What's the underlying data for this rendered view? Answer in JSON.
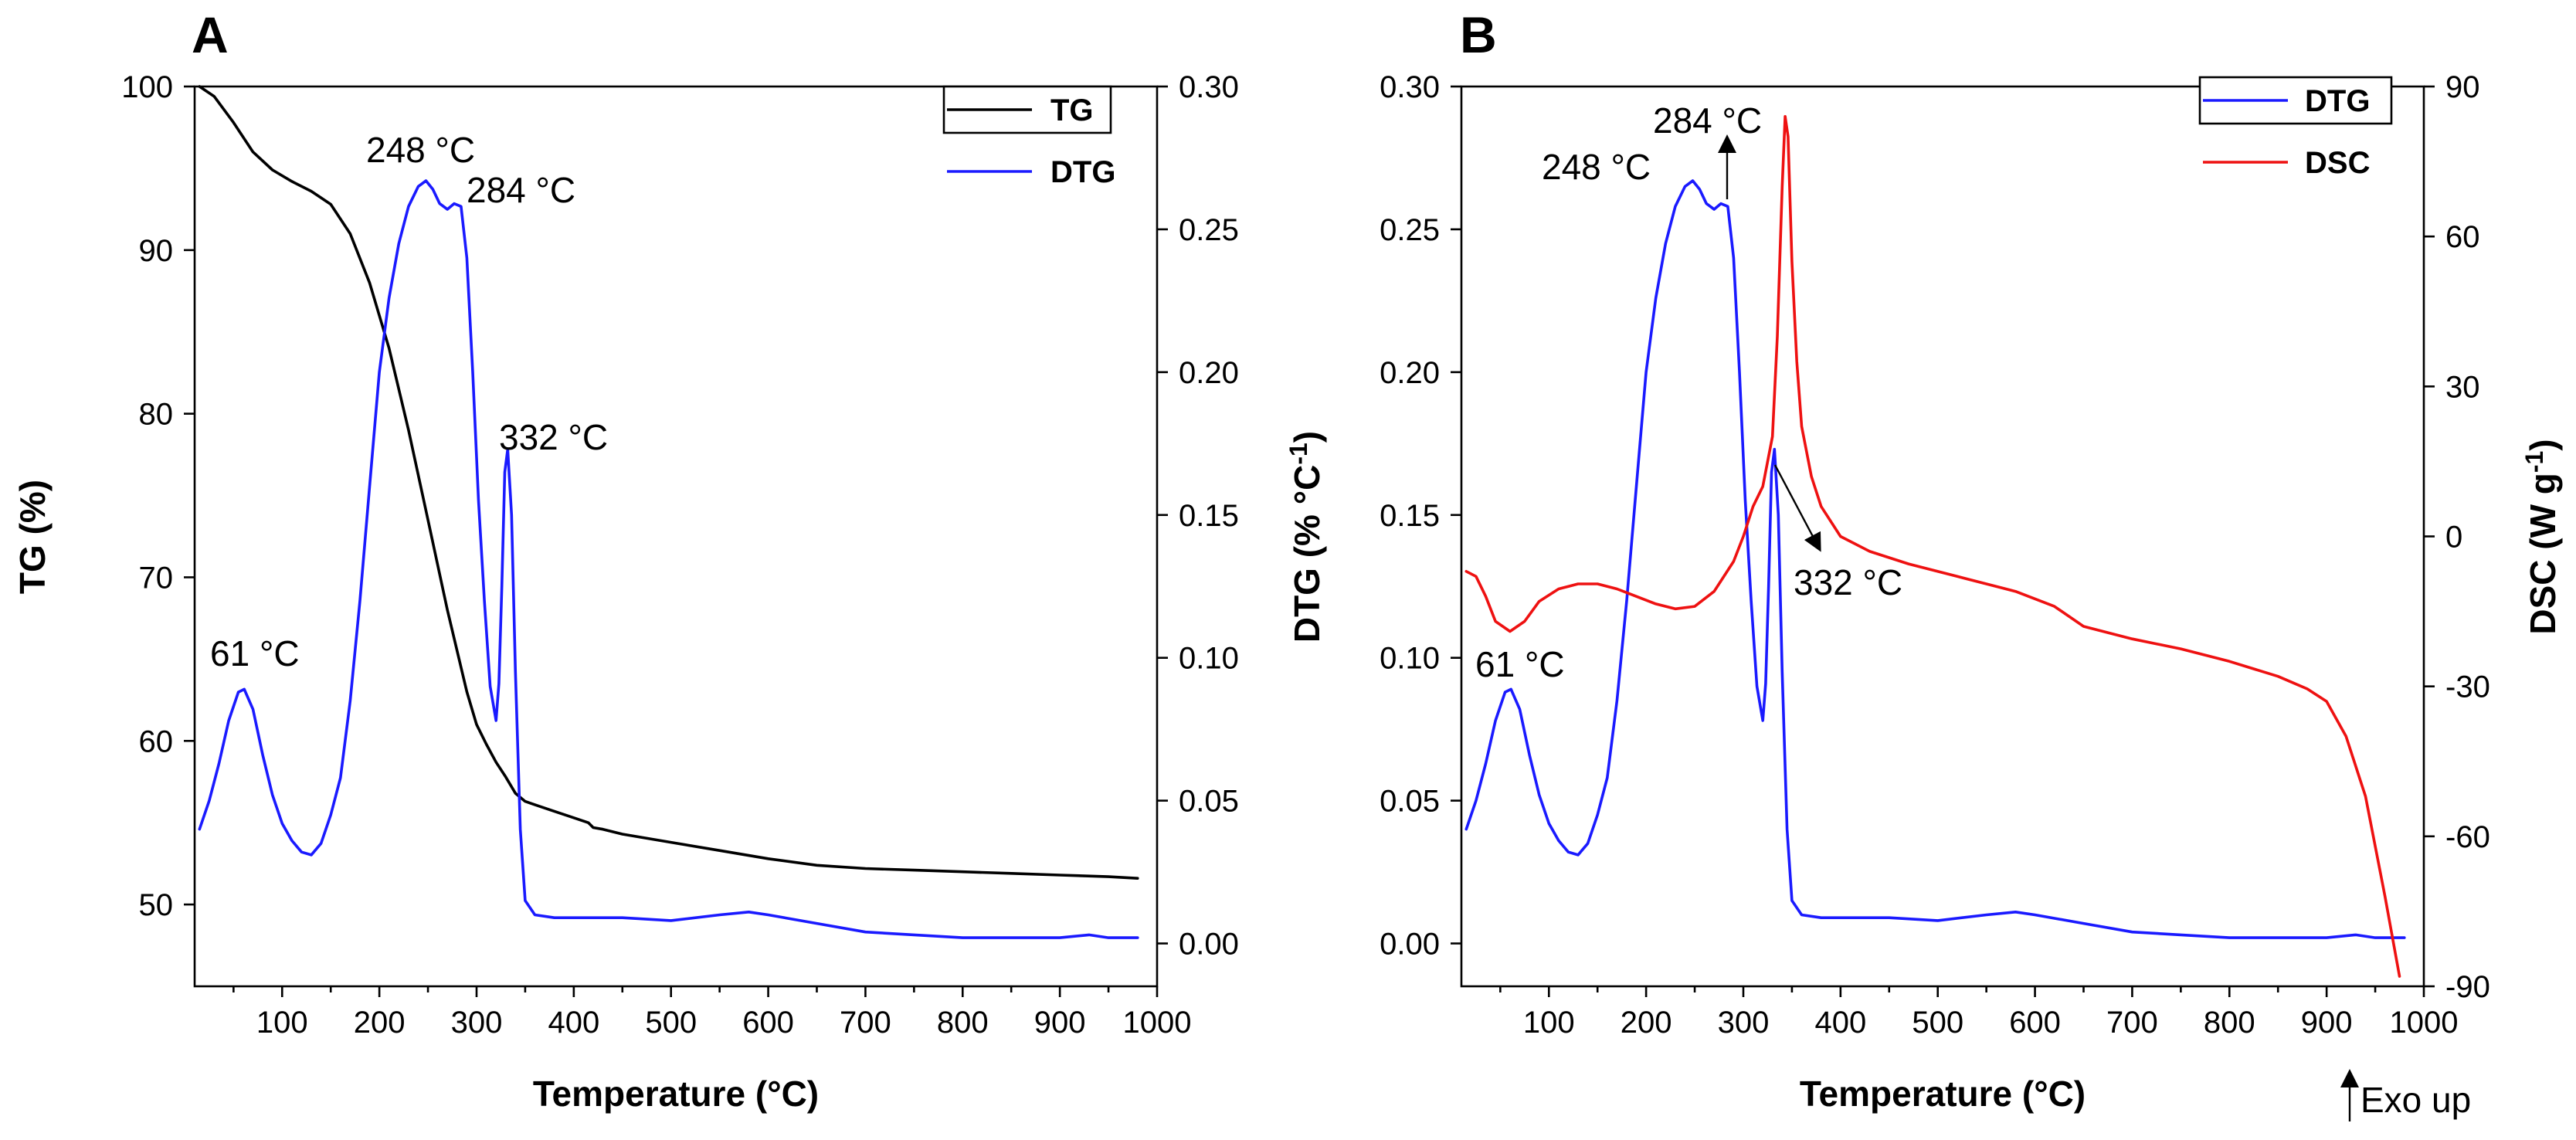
{
  "chart_data": [
    {
      "panel": "A",
      "type": "line",
      "xlabel": "Temperature (°C)",
      "ylabel_left": "TG (%)",
      "ylabel_right": "DTG (% °C-1)",
      "xlim": [
        10,
        1000
      ],
      "ylim_left": [
        45,
        100
      ],
      "ylim_right": [
        -0.015,
        0.3
      ],
      "x_ticks": [
        100,
        200,
        300,
        400,
        500,
        600,
        700,
        800,
        900,
        1000
      ],
      "y_left_ticks": [
        50,
        60,
        70,
        80,
        90,
        100
      ],
      "y_right_ticks": [
        0.0,
        0.05,
        0.1,
        0.15,
        0.2,
        0.25,
        0.3
      ],
      "legend": [
        "TG",
        "DTG"
      ],
      "legend_position": "top-right",
      "annotations": [
        "61 °C",
        "248 °C",
        "284 °C",
        "332 °C"
      ],
      "series": [
        {
          "name": "TG",
          "axis": "left",
          "color": "#000000",
          "x": [
            15,
            30,
            50,
            70,
            90,
            110,
            130,
            150,
            170,
            190,
            210,
            230,
            250,
            270,
            290,
            300,
            310,
            320,
            330,
            340,
            350,
            360,
            380,
            400,
            415,
            420,
            430,
            450,
            500,
            550,
            600,
            650,
            700,
            750,
            800,
            850,
            900,
            950,
            980
          ],
          "y": [
            100,
            99.4,
            97.8,
            96,
            94.9,
            94.2,
            93.6,
            92.8,
            91.0,
            88.0,
            84.0,
            79.0,
            73.5,
            68.0,
            63.0,
            61.0,
            59.8,
            58.7,
            57.8,
            56.8,
            56.3,
            56.1,
            55.7,
            55.3,
            55.0,
            54.7,
            54.6,
            54.3,
            53.8,
            53.3,
            52.8,
            52.4,
            52.2,
            52.1,
            52.0,
            51.9,
            51.8,
            51.7,
            51.6
          ]
        },
        {
          "name": "DTG",
          "axis": "right",
          "color": "#1a1aff",
          "x": [
            15,
            25,
            35,
            45,
            55,
            61,
            70,
            80,
            90,
            100,
            110,
            120,
            130,
            140,
            150,
            160,
            170,
            180,
            190,
            200,
            210,
            220,
            230,
            240,
            248,
            255,
            262,
            270,
            277,
            284,
            290,
            296,
            302,
            308,
            314,
            320,
            323,
            326,
            329,
            332,
            336,
            340,
            345,
            350,
            360,
            380,
            400,
            450,
            500,
            550,
            580,
            600,
            650,
            700,
            750,
            800,
            850,
            900,
            930,
            950,
            980
          ],
          "y": [
            0.04,
            0.05,
            0.063,
            0.078,
            0.088,
            0.089,
            0.082,
            0.066,
            0.052,
            0.042,
            0.036,
            0.032,
            0.031,
            0.035,
            0.045,
            0.058,
            0.085,
            0.12,
            0.16,
            0.2,
            0.226,
            0.245,
            0.258,
            0.265,
            0.267,
            0.264,
            0.259,
            0.257,
            0.259,
            0.258,
            0.24,
            0.2,
            0.155,
            0.12,
            0.09,
            0.078,
            0.091,
            0.125,
            0.165,
            0.173,
            0.15,
            0.095,
            0.04,
            0.015,
            0.01,
            0.009,
            0.009,
            0.009,
            0.008,
            0.01,
            0.011,
            0.01,
            0.007,
            0.004,
            0.003,
            0.002,
            0.002,
            0.002,
            0.003,
            0.002,
            0.002
          ]
        }
      ]
    },
    {
      "panel": "B",
      "type": "line",
      "xlabel": "Temperature (°C)",
      "ylabel_left": "DTG (% °C-1)",
      "ylabel_right": "DSC (W g-1)",
      "xlim": [
        10,
        1000
      ],
      "ylim_left": [
        -0.015,
        0.3
      ],
      "ylim_right": [
        -90,
        90
      ],
      "x_ticks": [
        100,
        200,
        300,
        400,
        500,
        600,
        700,
        800,
        900,
        1000
      ],
      "y_left_ticks": [
        0.0,
        0.05,
        0.1,
        0.15,
        0.2,
        0.25,
        0.3
      ],
      "y_right_ticks": [
        -90,
        -60,
        -30,
        0,
        30,
        60,
        90
      ],
      "legend": [
        "DTG",
        "DSC"
      ],
      "legend_position": "top-right",
      "annotations": [
        "61 °C",
        "248 °C",
        "284 °C",
        "332 °C",
        "Exo up"
      ],
      "series": [
        {
          "name": "DTG",
          "axis": "left",
          "color": "#1a1aff",
          "x": [
            15,
            25,
            35,
            45,
            55,
            61,
            70,
            80,
            90,
            100,
            110,
            120,
            130,
            140,
            150,
            160,
            170,
            180,
            190,
            200,
            210,
            220,
            230,
            240,
            248,
            255,
            262,
            270,
            277,
            284,
            290,
            296,
            302,
            308,
            314,
            320,
            323,
            326,
            329,
            332,
            336,
            340,
            345,
            350,
            360,
            380,
            400,
            450,
            500,
            550,
            580,
            600,
            650,
            700,
            750,
            800,
            850,
            900,
            930,
            950,
            980
          ],
          "y": [
            0.04,
            0.05,
            0.063,
            0.078,
            0.088,
            0.089,
            0.082,
            0.066,
            0.052,
            0.042,
            0.036,
            0.032,
            0.031,
            0.035,
            0.045,
            0.058,
            0.085,
            0.12,
            0.16,
            0.2,
            0.226,
            0.245,
            0.258,
            0.265,
            0.267,
            0.264,
            0.259,
            0.257,
            0.259,
            0.258,
            0.24,
            0.2,
            0.155,
            0.12,
            0.09,
            0.078,
            0.091,
            0.125,
            0.165,
            0.173,
            0.15,
            0.095,
            0.04,
            0.015,
            0.01,
            0.009,
            0.009,
            0.009,
            0.008,
            0.01,
            0.011,
            0.01,
            0.007,
            0.004,
            0.003,
            0.002,
            0.002,
            0.002,
            0.003,
            0.002,
            0.002
          ]
        },
        {
          "name": "DSC",
          "axis": "right",
          "color": "#ee1111",
          "x": [
            15,
            25,
            35,
            45,
            60,
            75,
            90,
            110,
            130,
            150,
            170,
            190,
            210,
            230,
            250,
            270,
            290,
            300,
            310,
            320,
            330,
            335,
            340,
            343,
            346,
            350,
            355,
            360,
            370,
            380,
            400,
            430,
            470,
            520,
            580,
            620,
            650,
            700,
            750,
            800,
            850,
            880,
            900,
            920,
            940,
            960,
            975
          ],
          "y": [
            -7,
            -8,
            -12,
            -17,
            -19,
            -17,
            -13,
            -10.5,
            -9.5,
            -9.5,
            -10.5,
            -12,
            -13.5,
            -14.5,
            -14,
            -11,
            -5,
            0,
            6,
            10,
            20,
            40,
            70,
            84,
            80,
            55,
            35,
            22,
            12,
            6,
            0,
            -3,
            -5.5,
            -8,
            -11,
            -14,
            -18,
            -20.5,
            -22.5,
            -25,
            -28,
            -30.5,
            -33,
            -40,
            -52,
            -72,
            -88
          ]
        }
      ]
    }
  ]
}
